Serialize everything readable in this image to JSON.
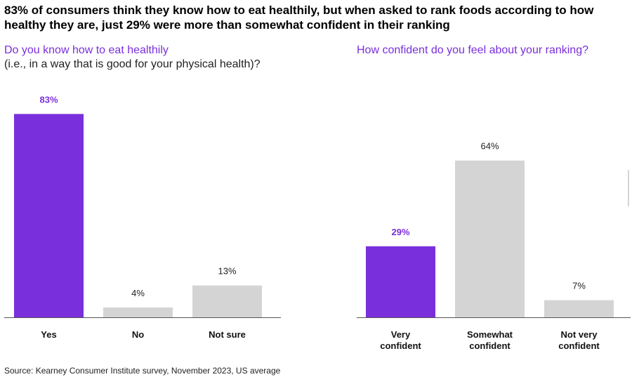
{
  "headline": "83% of consumers think they know how to eat healthily, but when asked to rank foods according to how healthy they are, just 29% were more than somewhat confident in their ranking",
  "source": "Source: Kearney Consumer Institute survey, November 2023, US average",
  "colors": {
    "highlight": "#7a2fdc",
    "neutral": "#d4d4d4",
    "axis": "#555555"
  },
  "chart_data": [
    {
      "type": "bar",
      "title": "Do you know how to eat healthily",
      "subtitle": "(i.e., in a way that is good for your physical health)?",
      "categories": [
        "Yes",
        "No",
        "Not sure"
      ],
      "values": [
        83,
        4,
        13
      ],
      "value_labels": [
        "83%",
        "4%",
        "13%"
      ],
      "highlight": [
        true,
        false,
        false
      ],
      "ylim": [
        0,
        100
      ],
      "grid": false
    },
    {
      "type": "bar",
      "title": "How confident do you feel about your ranking?",
      "categories": [
        "Very confident",
        "Somewhat confident",
        "Not very confident"
      ],
      "category_lines": [
        [
          "Very",
          "confident"
        ],
        [
          "Somewhat",
          "confident"
        ],
        [
          "Not very",
          "confident"
        ]
      ],
      "values": [
        29,
        64,
        7
      ],
      "value_labels": [
        "29%",
        "64%",
        "7%"
      ],
      "highlight": [
        true,
        false,
        false
      ],
      "ylim": [
        0,
        100
      ],
      "grid": false
    }
  ]
}
